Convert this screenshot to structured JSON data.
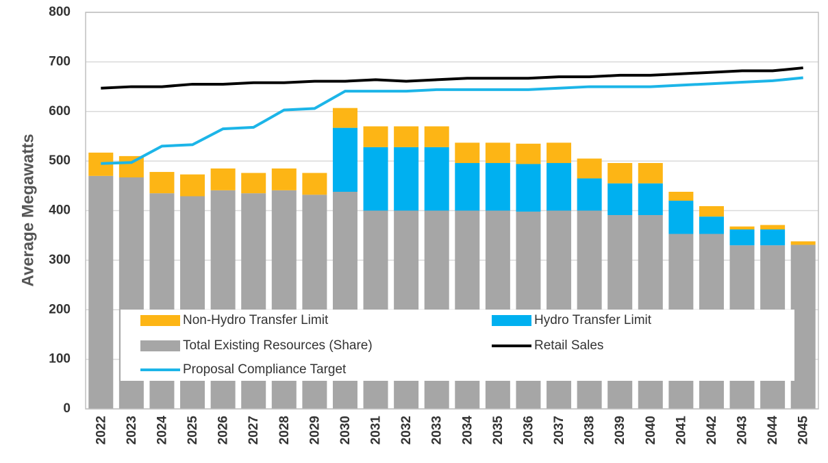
{
  "chart_data": {
    "type": "bar",
    "y_label": "Average Megawatts",
    "categories": [
      "2022",
      "2023",
      "2024",
      "2025",
      "2026",
      "2027",
      "2028",
      "2029",
      "2030",
      "2031",
      "2032",
      "2033",
      "2034",
      "2035",
      "2036",
      "2037",
      "2038",
      "2039",
      "2040",
      "2041",
      "2042",
      "2043",
      "2044",
      "2045"
    ],
    "ylim": [
      0,
      800
    ],
    "yticks": [
      0,
      100,
      200,
      300,
      400,
      500,
      600,
      700,
      800
    ],
    "grid": true,
    "stacked": true,
    "series": [
      {
        "name": "Non-Hydro Transfer Limit",
        "type": "bar",
        "color": "#FDB515",
        "values": [
          47,
          43,
          43,
          44,
          44,
          41,
          44,
          44,
          40,
          42,
          42,
          42,
          41,
          41,
          41,
          41,
          40,
          41,
          41,
          18,
          21,
          6,
          9,
          7
        ]
      },
      {
        "name": "Hydro Transfer Limit",
        "type": "bar",
        "color": "#00B0F0",
        "values": [
          0,
          0,
          0,
          0,
          0,
          0,
          0,
          0,
          129,
          128,
          128,
          128,
          96,
          96,
          96,
          96,
          65,
          64,
          64,
          67,
          35,
          32,
          32,
          0
        ]
      },
      {
        "name": "Total Existing Resources (Share)",
        "type": "bar",
        "color": "#A6A6A6",
        "values": [
          470,
          467,
          435,
          429,
          441,
          435,
          441,
          432,
          438,
          400,
          400,
          400,
          400,
          400,
          398,
          400,
          400,
          391,
          391,
          353,
          353,
          330,
          330,
          331
        ]
      },
      {
        "name": "Retail Sales",
        "type": "line",
        "color": "#000000",
        "values": [
          647,
          650,
          650,
          655,
          655,
          658,
          658,
          661,
          661,
          664,
          661,
          664,
          667,
          667,
          667,
          670,
          670,
          673,
          673,
          676,
          679,
          682,
          682,
          688
        ]
      },
      {
        "name": "Proposal Compliance Target",
        "type": "line",
        "color": "#1CB5E8",
        "values": [
          495,
          497,
          530,
          533,
          565,
          568,
          603,
          606,
          641,
          641,
          641,
          644,
          644,
          644,
          644,
          647,
          650,
          650,
          650,
          653,
          656,
          659,
          662,
          668
        ]
      }
    ]
  }
}
